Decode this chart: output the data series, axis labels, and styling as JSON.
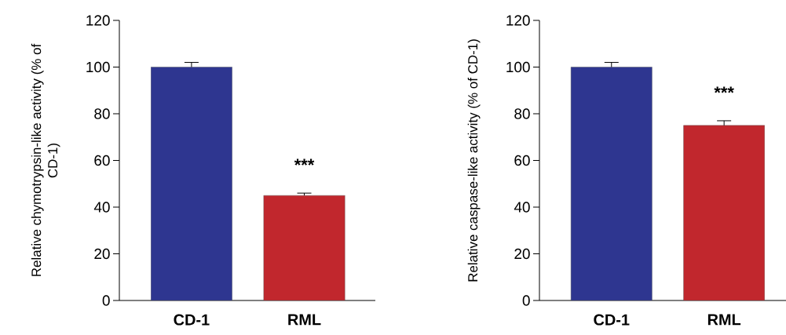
{
  "chart_data": [
    {
      "type": "bar",
      "ylabel": "Relative chymotrypsin-like activity (% of CD-1)",
      "categories": [
        "CD-1",
        "RML"
      ],
      "values": [
        100,
        45
      ],
      "colors": [
        "#2e3690",
        "#c1272d"
      ],
      "errors": [
        2,
        1
      ],
      "ylim": [
        0,
        120
      ],
      "yticks": [
        0,
        20,
        40,
        60,
        80,
        100,
        120
      ],
      "annotations": [
        "***"
      ]
    },
    {
      "type": "bar",
      "ylabel": "Relative caspase-like activity (% of CD-1)",
      "categories": [
        "CD-1",
        "RML"
      ],
      "values": [
        100,
        75
      ],
      "colors": [
        "#2e3690",
        "#c1272d"
      ],
      "errors": [
        2,
        2
      ],
      "ylim": [
        0,
        120
      ],
      "yticks": [
        0,
        20,
        40,
        60,
        80,
        100,
        120
      ],
      "annotations": [
        "***"
      ]
    }
  ]
}
